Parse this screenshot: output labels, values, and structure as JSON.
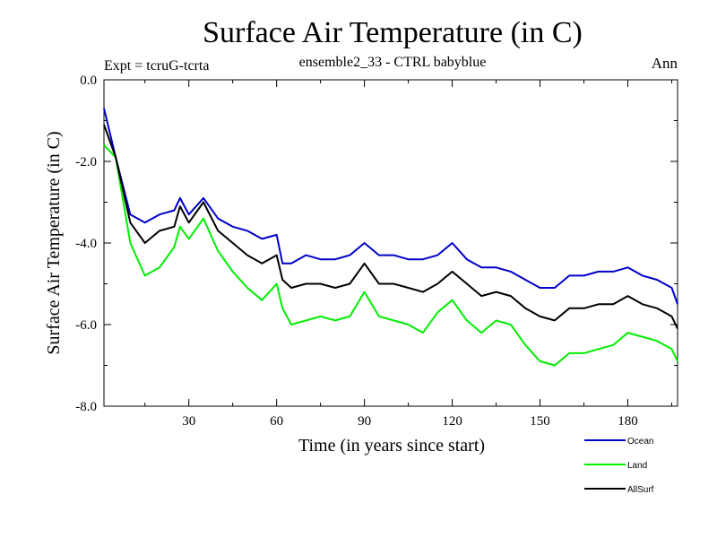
{
  "chart_data": {
    "type": "line",
    "title": "Surface Air Temperature (in C)",
    "subtitle": "ensemble2_33 - CTRL babyblue",
    "left_label": "Expt = tcruG-tcrta",
    "right_label": "Ann",
    "xlabel": "Time (in years since start)",
    "ylabel": "Surface Air Temperature (in C)",
    "xlim": [
      1,
      197
    ],
    "ylim": [
      -8,
      0
    ],
    "xticks": [
      30,
      60,
      90,
      120,
      150,
      180
    ],
    "yticks": [
      0,
      -2,
      -4,
      -6,
      -8
    ],
    "ytick_labels": [
      "0.0",
      "-2.0",
      "-4.0",
      "-6.0",
      "-8.0"
    ],
    "grid": false,
    "legend_position": "below-right",
    "x": [
      1,
      5,
      10,
      15,
      20,
      25,
      27,
      30,
      35,
      40,
      45,
      50,
      55,
      60,
      62,
      65,
      70,
      75,
      80,
      85,
      90,
      95,
      100,
      105,
      110,
      115,
      120,
      125,
      130,
      135,
      140,
      145,
      150,
      155,
      160,
      165,
      170,
      175,
      180,
      185,
      190,
      195,
      197
    ],
    "series": [
      {
        "name": "Ocean",
        "color": "#0000cc",
        "values": [
          -0.7,
          -1.9,
          -3.3,
          -3.5,
          -3.3,
          -3.2,
          -2.9,
          -3.3,
          -2.9,
          -3.4,
          -3.6,
          -3.7,
          -3.9,
          -3.8,
          -4.5,
          -4.5,
          -4.3,
          -4.4,
          -4.4,
          -4.3,
          -4.0,
          -4.3,
          -4.3,
          -4.4,
          -4.4,
          -4.3,
          -4.0,
          -4.4,
          -4.6,
          -4.6,
          -4.7,
          -4.9,
          -5.1,
          -5.1,
          -4.8,
          -4.8,
          -4.7,
          -4.7,
          -4.6,
          -4.8,
          -4.9,
          -5.1,
          -5.5
        ]
      },
      {
        "name": "Land",
        "color": "#00ee00",
        "values": [
          -1.6,
          -1.9,
          -4.0,
          -4.8,
          -4.6,
          -4.1,
          -3.6,
          -3.9,
          -3.4,
          -4.2,
          -4.7,
          -5.1,
          -5.4,
          -5.0,
          -5.6,
          -6.0,
          -5.9,
          -5.8,
          -5.9,
          -5.8,
          -5.2,
          -5.8,
          -5.9,
          -6.0,
          -6.2,
          -5.7,
          -5.4,
          -5.9,
          -6.2,
          -5.9,
          -6.0,
          -6.5,
          -6.9,
          -7.0,
          -6.7,
          -6.7,
          -6.6,
          -6.5,
          -6.2,
          -6.3,
          -6.4,
          -6.6,
          -6.9
        ]
      },
      {
        "name": "AllSurf",
        "color": "#000000",
        "values": [
          -1.1,
          -1.9,
          -3.5,
          -4.0,
          -3.7,
          -3.6,
          -3.1,
          -3.5,
          -3.0,
          -3.7,
          -4.0,
          -4.3,
          -4.5,
          -4.3,
          -4.9,
          -5.1,
          -5.0,
          -5.0,
          -5.1,
          -5.0,
          -4.5,
          -5.0,
          -5.0,
          -5.1,
          -5.2,
          -5.0,
          -4.7,
          -5.0,
          -5.3,
          -5.2,
          -5.3,
          -5.6,
          -5.8,
          -5.9,
          -5.6,
          -5.6,
          -5.5,
          -5.5,
          -5.3,
          -5.5,
          -5.6,
          -5.8,
          -6.1
        ]
      }
    ]
  }
}
